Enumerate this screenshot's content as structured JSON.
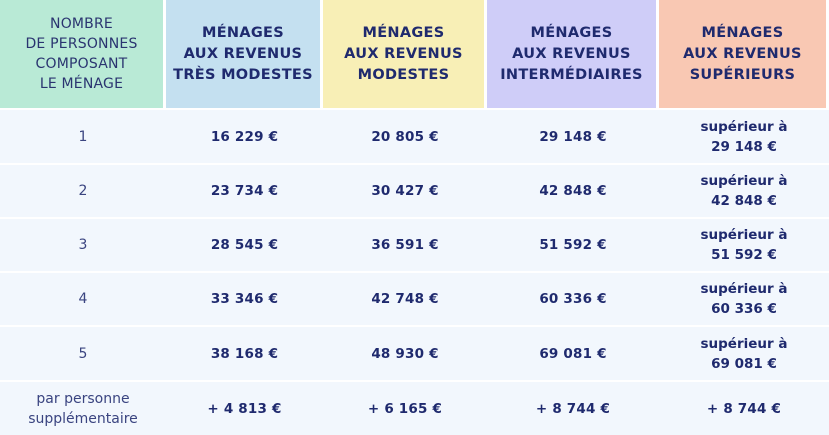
{
  "headers": [
    {
      "label": "NOMBRE\nDE PERSONNES\nCOMPOSANT\nLE MÉNAGE",
      "color": "#b9ead6"
    },
    {
      "label": "MÉNAGES\nAUX REVENUS\nTRÈS MODESTES",
      "color": "#c4e0f0"
    },
    {
      "label": "MÉNAGES\nAUX REVENUS\nMODESTES",
      "color": "#f8efb6"
    },
    {
      "label": "MÉNAGES\nAUX REVENUS\nINTERMÉDIAIRES",
      "color": "#cfcdf8"
    },
    {
      "label": "MÉNAGES\nAUX REVENUS\nSUPÉRIEURS",
      "color": "#f9c8b3"
    }
  ],
  "rows": [
    {
      "persons": "1",
      "tres_modestes": "16 229 €",
      "modestes": "20 805 €",
      "intermediaires": "29 148 €",
      "superieurs": "supérieur à\n29 148 €"
    },
    {
      "persons": "2",
      "tres_modestes": "23 734 €",
      "modestes": "30 427 €",
      "intermediaires": "42 848 €",
      "superieurs": "supérieur à\n42 848 €"
    },
    {
      "persons": "3",
      "tres_modestes": "28 545 €",
      "modestes": "36 591 €",
      "intermediaires": "51 592 €",
      "superieurs": "supérieur à\n51 592 €"
    },
    {
      "persons": "4",
      "tres_modestes": "33 346 €",
      "modestes": "42 748 €",
      "intermediaires": "60 336 €",
      "superieurs": "supérieur à\n60 336 €"
    },
    {
      "persons": "5",
      "tres_modestes": "38 168 €",
      "modestes": "48 930 €",
      "intermediaires": "69 081 €",
      "superieurs": "supérieur à\n69 081 €"
    },
    {
      "persons": "par personne\nsupplémentaire",
      "tres_modestes": "+ 4 813 €",
      "modestes": "+ 6 165 €",
      "intermediaires": "+ 8 744 €",
      "superieurs": "+ 8 744 €"
    }
  ]
}
